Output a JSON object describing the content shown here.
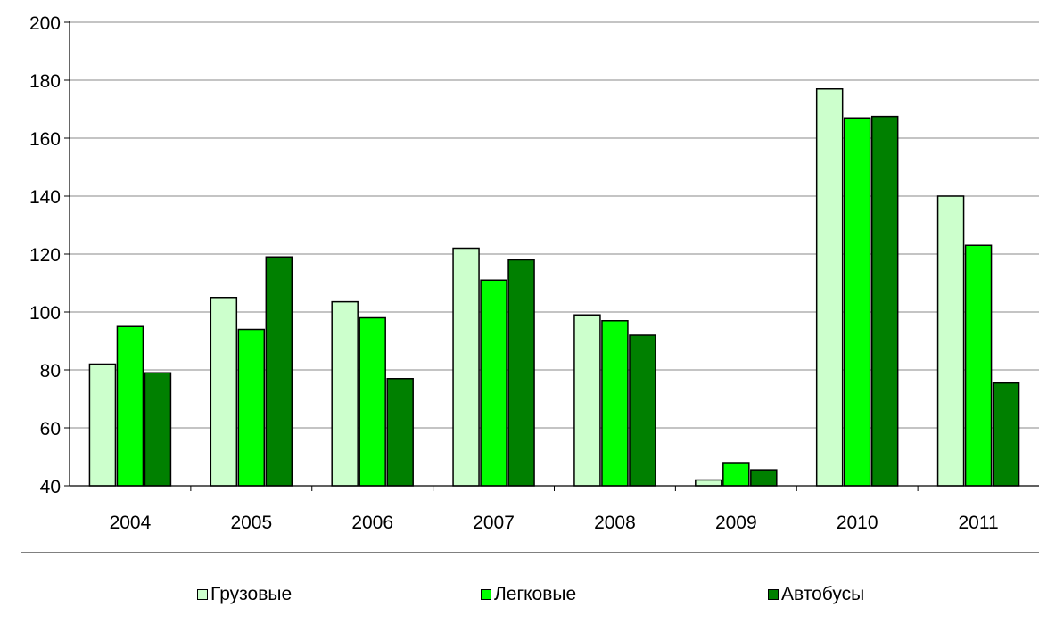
{
  "chart_data": {
    "type": "bar",
    "categories": [
      "2004",
      "2005",
      "2006",
      "2007",
      "2008",
      "2009",
      "2010",
      "2011"
    ],
    "series": [
      {
        "name": "Грузовые",
        "color": "#ccffcc",
        "values": [
          82,
          105,
          103.5,
          122,
          99,
          42,
          177,
          140
        ]
      },
      {
        "name": "Легковые",
        "color": "#00ff00",
        "values": [
          95,
          94,
          98,
          111,
          97,
          48,
          167,
          123
        ]
      },
      {
        "name": "Автобусы",
        "color": "#008000",
        "values": [
          79,
          119,
          77,
          118,
          92,
          45.5,
          167.5,
          75.5
        ]
      }
    ],
    "ylim": [
      40,
      200
    ],
    "yticks": [
      "40",
      "60",
      "80",
      "100",
      "120",
      "140",
      "160",
      "180",
      "200"
    ],
    "grid": true,
    "legend_position": "bottom"
  }
}
